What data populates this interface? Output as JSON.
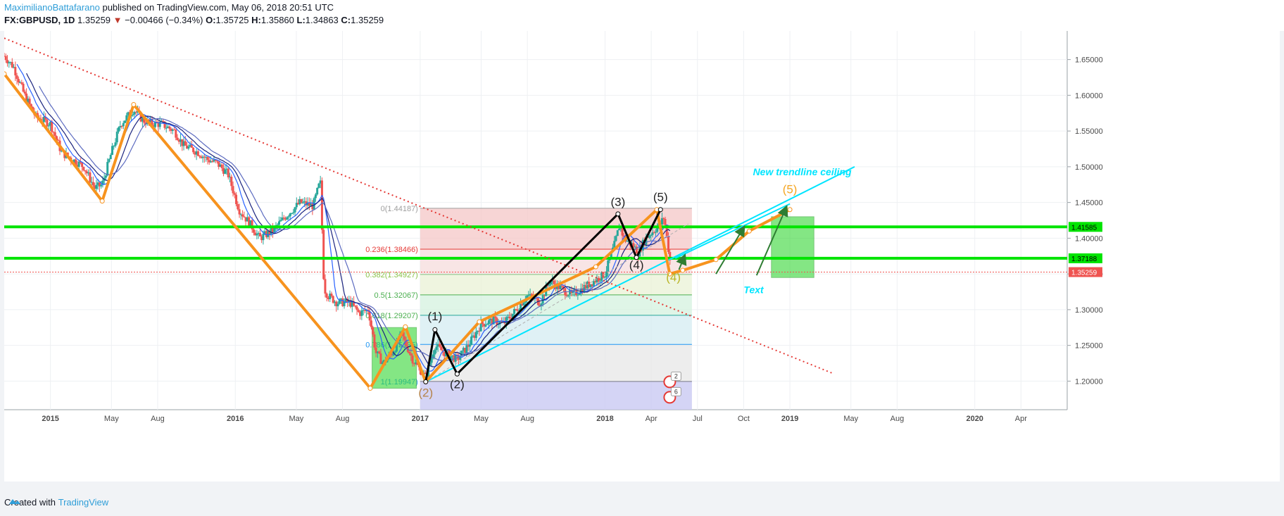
{
  "header": {
    "author": "MaximilianoBattafarano",
    "published_text": " published on TradingView.com, May 06, 2018 20:51 UTC",
    "symbol": "FX:GBPUSD, 1D",
    "last": "1.35259",
    "change": "−0.00466 (−0.34%)",
    "o_label": "O:",
    "o": "1.35725",
    "h_label": "H:",
    "h": "1.35860",
    "l_label": "L:",
    "l": "1.34863",
    "c_label": "C:",
    "c": "1.35259"
  },
  "footer": {
    "created_with": "Created with",
    "brand": "TradingView"
  },
  "colors": {
    "up": "#26a69a",
    "down": "#ef5350",
    "wave": "#f7931e",
    "impulse": "#000000",
    "trend": "#00e5ff",
    "support": "#00e400",
    "fib_text": "#e53935"
  },
  "chart_data": {
    "type": "line",
    "symbol": "GBPUSD",
    "timeframe": "1D",
    "ylim": [
      1.16,
      1.69
    ],
    "y_ticks": [
      1.2,
      1.25,
      1.3,
      1.35,
      1.4,
      1.45,
      1.5,
      1.55,
      1.6,
      1.65
    ],
    "y_tick_labels": [
      "1.20000",
      "1.25000",
      "1.30000",
      "1.35000",
      "1.40000",
      "1.45000",
      "1.50000",
      "1.55000",
      "1.60000",
      "1.65000"
    ],
    "x_ticks": [
      {
        "label": "2015",
        "t": 2015.0,
        "bold": true
      },
      {
        "label": "May",
        "t": 2015.33
      },
      {
        "label": "Aug",
        "t": 2015.58
      },
      {
        "label": "2016",
        "t": 2016.0,
        "bold": true
      },
      {
        "label": "May",
        "t": 2016.33
      },
      {
        "label": "Aug",
        "t": 2016.58
      },
      {
        "label": "2017",
        "t": 2017.0,
        "bold": true
      },
      {
        "label": "May",
        "t": 2017.33
      },
      {
        "label": "Aug",
        "t": 2017.58
      },
      {
        "label": "2018",
        "t": 2018.0,
        "bold": true
      },
      {
        "label": "Apr",
        "t": 2018.25
      },
      {
        "label": "Jul",
        "t": 2018.5
      },
      {
        "label": "Oct",
        "t": 2018.75
      },
      {
        "label": "2019",
        "t": 2019.0,
        "bold": true
      },
      {
        "label": "May",
        "t": 2019.33
      },
      {
        "label": "Aug",
        "t": 2019.58
      },
      {
        "label": "2020",
        "t": 2020.0,
        "bold": true
      },
      {
        "label": "Apr",
        "t": 2020.25
      }
    ],
    "price_path": [
      [
        2014.75,
        1.655
      ],
      [
        2014.8,
        1.64
      ],
      [
        2014.86,
        1.6
      ],
      [
        2014.92,
        1.57
      ],
      [
        2015.0,
        1.56
      ],
      [
        2015.06,
        1.52
      ],
      [
        2015.12,
        1.51
      ],
      [
        2015.18,
        1.5
      ],
      [
        2015.24,
        1.47
      ],
      [
        2015.28,
        1.475
      ],
      [
        2015.33,
        1.52
      ],
      [
        2015.38,
        1.56
      ],
      [
        2015.45,
        1.58
      ],
      [
        2015.5,
        1.565
      ],
      [
        2015.55,
        1.56
      ],
      [
        2015.6,
        1.56
      ],
      [
        2015.67,
        1.55
      ],
      [
        2015.72,
        1.53
      ],
      [
        2015.8,
        1.52
      ],
      [
        2015.85,
        1.51
      ],
      [
        2015.9,
        1.505
      ],
      [
        2015.96,
        1.49
      ],
      [
        2016.02,
        1.44
      ],
      [
        2016.08,
        1.42
      ],
      [
        2016.13,
        1.4
      ],
      [
        2016.2,
        1.41
      ],
      [
        2016.27,
        1.43
      ],
      [
        2016.35,
        1.45
      ],
      [
        2016.42,
        1.445
      ],
      [
        2016.46,
        1.48
      ],
      [
        2016.48,
        1.33
      ],
      [
        2016.5,
        1.32
      ],
      [
        2016.55,
        1.31
      ],
      [
        2016.62,
        1.31
      ],
      [
        2016.67,
        1.295
      ],
      [
        2016.72,
        1.3
      ],
      [
        2016.76,
        1.24
      ],
      [
        2016.8,
        1.225
      ],
      [
        2016.85,
        1.24
      ],
      [
        2016.9,
        1.265
      ],
      [
        2016.96,
        1.23
      ],
      [
        2017.03,
        1.205
      ],
      [
        2017.08,
        1.25
      ],
      [
        2017.13,
        1.24
      ],
      [
        2017.2,
        1.23
      ],
      [
        2017.26,
        1.25
      ],
      [
        2017.33,
        1.28
      ],
      [
        2017.4,
        1.285
      ],
      [
        2017.45,
        1.28
      ],
      [
        2017.52,
        1.3
      ],
      [
        2017.58,
        1.32
      ],
      [
        2017.65,
        1.31
      ],
      [
        2017.7,
        1.34
      ],
      [
        2017.76,
        1.33
      ],
      [
        2017.82,
        1.32
      ],
      [
        2017.88,
        1.33
      ],
      [
        2017.94,
        1.34
      ],
      [
        2018.0,
        1.35
      ],
      [
        2018.05,
        1.39
      ],
      [
        2018.08,
        1.42
      ],
      [
        2018.1,
        1.4
      ],
      [
        2018.15,
        1.39
      ],
      [
        2018.18,
        1.38
      ],
      [
        2018.22,
        1.4
      ],
      [
        2018.26,
        1.41
      ],
      [
        2018.3,
        1.42
      ],
      [
        2018.32,
        1.43
      ],
      [
        2018.34,
        1.39
      ],
      [
        2018.36,
        1.353
      ]
    ],
    "last_price": 1.35259,
    "last_price_label": "1.35259",
    "horizontal_levels": [
      {
        "price": 1.41585,
        "label": "1.41585"
      },
      {
        "price": 1.37188,
        "label": "1.37188"
      }
    ],
    "fibonacci": {
      "t_start": 2017.0,
      "t_end": 2018.47,
      "levels": [
        {
          "price": 1.44187,
          "label": "0(1.44187)"
        },
        {
          "price": 1.38466,
          "label": "0.236(1.38466)"
        },
        {
          "price": 1.34927,
          "label": "0.382(1.34927)"
        },
        {
          "price": 1.32067,
          "label": "0.5(1.32067)"
        },
        {
          "price": 1.29207,
          "label": "0.618(1.29207)"
        },
        {
          "price": 1.25135,
          "label": "0.786(1.25135)"
        },
        {
          "price": 1.19947,
          "label": "1(1.19947)"
        }
      ]
    },
    "orange_wave": [
      [
        2014.75,
        1.63
      ],
      [
        2015.28,
        1.452
      ],
      [
        2015.45,
        1.587
      ],
      [
        2016.73,
        1.19
      ],
      [
        2016.92,
        1.276
      ],
      [
        2017.03,
        1.199
      ],
      [
        2017.32,
        1.283
      ],
      [
        2017.95,
        1.36
      ],
      [
        2018.28,
        1.44
      ],
      [
        2018.35,
        1.35
      ],
      [
        2018.42,
        1.355
      ],
      [
        2018.6,
        1.37
      ],
      [
        2018.78,
        1.41
      ],
      [
        2019.0,
        1.44
      ]
    ],
    "black_wave": [
      [
        2017.03,
        1.199
      ],
      [
        2017.08,
        1.272
      ],
      [
        2017.2,
        1.21
      ],
      [
        2018.07,
        1.434
      ],
      [
        2018.17,
        1.373
      ],
      [
        2018.3,
        1.44
      ]
    ],
    "trendline_red": [
      [
        2014.75,
        1.68
      ],
      [
        2019.24,
        1.21
      ]
    ],
    "trendline_cyan": [
      [
        2017.03,
        1.199
      ],
      [
        2019.35,
        1.5
      ]
    ],
    "wave_labels": [
      {
        "text": "(1)",
        "t": 2017.08,
        "p": 1.285
      },
      {
        "text": "(2)",
        "t": 2017.2,
        "p": 1.19
      },
      {
        "text": "(3)",
        "t": 2018.07,
        "p": 1.445
      },
      {
        "text": "(4)",
        "t": 2018.17,
        "p": 1.357
      },
      {
        "text": "(5)",
        "t": 2018.3,
        "p": 1.452
      },
      {
        "text": "(2)",
        "t": 2017.03,
        "p": 1.178
      },
      {
        "text": "(4)",
        "t": 2018.37,
        "p": 1.34
      },
      {
        "text": "(5)",
        "t": 2019.0,
        "p": 1.463
      }
    ],
    "annotations": [
      {
        "text": "New trendline ceiling",
        "t": 2018.8,
        "p": 1.488
      },
      {
        "text": "Text",
        "t": 2018.75,
        "p": 1.323
      }
    ],
    "green_boxes": [
      {
        "t0": 2016.74,
        "t1": 2016.98,
        "p0": 1.19,
        "p1": 1.275
      },
      {
        "t0": 2018.9,
        "t1": 2019.13,
        "p0": 1.345,
        "p1": 1.43
      }
    ],
    "arrows": [
      [
        [
          2018.6,
          1.35
        ],
        [
          2018.75,
          1.415
        ]
      ],
      [
        [
          2018.82,
          1.348
        ],
        [
          2018.98,
          1.443
        ]
      ],
      [
        [
          2018.4,
          1.356
        ],
        [
          2018.43,
          1.375
        ]
      ]
    ],
    "event_badges": [
      "2",
      "6"
    ]
  }
}
